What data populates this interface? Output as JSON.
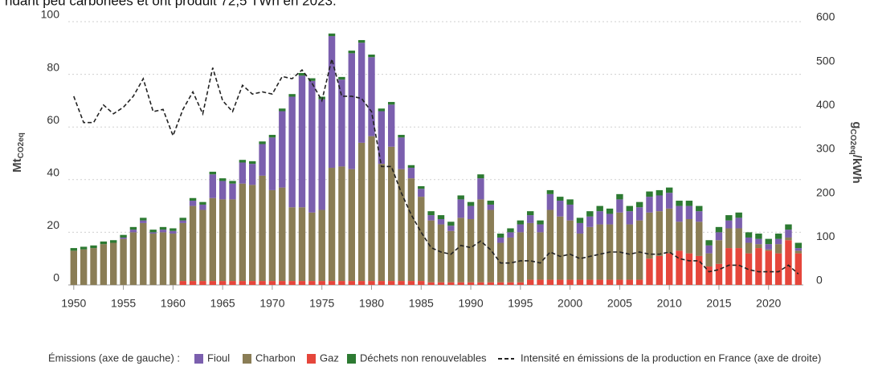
{
  "chart_data": {
    "type": "bar",
    "caption_fragment": "ndant peu carbonées et ont produit 72,5 TWh en 2023.",
    "y_label": "Mt",
    "y_label_sub": "CO2eq",
    "y2_label": "g",
    "y2_label_sub": "CO2eq",
    "y2_label_unit": "/kWh",
    "legend_title": "Émissions (axe de gauche) :",
    "x": [
      1950,
      1951,
      1952,
      1953,
      1954,
      1955,
      1956,
      1957,
      1958,
      1959,
      1960,
      1961,
      1962,
      1963,
      1964,
      1965,
      1966,
      1967,
      1968,
      1969,
      1970,
      1971,
      1972,
      1973,
      1974,
      1975,
      1976,
      1977,
      1978,
      1979,
      1980,
      1981,
      1982,
      1983,
      1984,
      1985,
      1986,
      1987,
      1988,
      1989,
      1990,
      1991,
      1992,
      1993,
      1994,
      1995,
      1996,
      1997,
      1998,
      1999,
      2000,
      2001,
      2002,
      2003,
      2004,
      2005,
      2006,
      2007,
      2008,
      2009,
      2010,
      2011,
      2012,
      2013,
      2014,
      2015,
      2016,
      2017,
      2018,
      2019,
      2020,
      2021,
      2022,
      2023
    ],
    "xlim": [
      1949.45,
      2023.5
    ],
    "xticks": [
      1950,
      1955,
      1960,
      1965,
      1970,
      1975,
      1980,
      1985,
      1990,
      1995,
      2000,
      2005,
      2010,
      2015,
      2020
    ],
    "ylim": [
      0,
      100
    ],
    "yticks": [
      0,
      20,
      40,
      60,
      80,
      100
    ],
    "y2lim": [
      0,
      600
    ],
    "y2ticks": [
      0,
      100,
      200,
      300,
      400,
      500,
      600
    ],
    "grid": true,
    "series": [
      {
        "name": "Fioul",
        "color": "#7b5fae",
        "values": [
          0,
          0,
          0,
          0,
          0,
          0.5,
          1,
          1,
          0.5,
          1,
          1,
          1,
          2,
          2,
          9,
          7,
          6,
          8,
          8,
          12,
          20,
          29,
          42,
          50,
          50,
          42,
          50,
          33,
          44,
          38,
          30,
          20,
          16,
          12,
          4,
          3,
          2,
          2,
          2,
          7,
          5,
          8,
          2,
          2,
          2,
          3,
          3,
          3,
          6,
          6,
          6,
          4,
          4,
          5,
          4,
          5,
          5,
          5,
          6,
          6,
          6,
          6,
          5,
          4,
          3,
          3,
          3,
          4,
          2,
          2,
          2,
          2,
          3,
          1
        ]
      },
      {
        "name": "Charbon",
        "color": "#8a7d55",
        "values": [
          13,
          13.5,
          14,
          15.5,
          16,
          17.5,
          20,
          23.5,
          19.5,
          20,
          19.5,
          22,
          28.5,
          27,
          31.5,
          31,
          31,
          37,
          36.5,
          40,
          34.5,
          35.5,
          28,
          28,
          26,
          27,
          43,
          43.5,
          42.5,
          52.5,
          55,
          44.5,
          51,
          42.5,
          39,
          32,
          23.5,
          22,
          19.5,
          24.5,
          24,
          31.5,
          27.5,
          15,
          17,
          19,
          21.5,
          18,
          26.5,
          24,
          22.5,
          17.5,
          20,
          21,
          21,
          25.5,
          21,
          22.5,
          17.5,
          17,
          17,
          11,
          13,
          13,
          5,
          9,
          7.5,
          7.5,
          4,
          1.5,
          0.5,
          3.5,
          1,
          1
        ]
      },
      {
        "name": "Gaz",
        "color": "#e5463b",
        "values": [
          0,
          0,
          0,
          0,
          0,
          0,
          0,
          0,
          0,
          0,
          0,
          1.5,
          1.5,
          1.5,
          1.5,
          1.5,
          1.5,
          1.5,
          1.5,
          1.5,
          1.5,
          1.5,
          1.5,
          1.5,
          1.5,
          1.5,
          1.5,
          1.5,
          1.5,
          1.5,
          1.5,
          1.5,
          1.5,
          1.5,
          1.5,
          1.5,
          1,
          1,
          1,
          1,
          1,
          1,
          1,
          1,
          1,
          1,
          2,
          2,
          2,
          2,
          2,
          2,
          2,
          2,
          2,
          2,
          2,
          2,
          10,
          11,
          12,
          13,
          12,
          11,
          7,
          8,
          14,
          14,
          12,
          14,
          13,
          12,
          17,
          12
        ]
      },
      {
        "name": "Déchets non renouvelables",
        "color": "#2d7a32",
        "values": [
          1,
          1,
          1,
          1,
          1,
          1,
          1,
          1,
          1,
          1,
          1,
          1,
          1,
          1,
          1,
          1,
          1,
          1,
          1,
          1,
          1,
          1,
          1,
          1,
          1,
          1,
          1,
          1,
          1,
          1,
          1,
          1,
          1,
          1,
          1,
          1,
          1.5,
          1.5,
          1.5,
          1.5,
          1.5,
          1.5,
          1.5,
          1.5,
          1.5,
          1.5,
          1.5,
          1.5,
          1.5,
          1.5,
          2,
          2,
          2,
          2,
          2,
          2,
          2,
          2,
          2,
          2,
          2,
          2,
          2,
          2,
          2,
          2,
          2,
          2,
          2,
          2,
          2,
          2,
          2,
          2
        ]
      },
      {
        "name": "Intensité en émissions de la production en France (axe de droite)",
        "color": "#222222",
        "type": "line",
        "dashed": true,
        "axis": "y2",
        "values": [
          430,
          370,
          370,
          410,
          390,
          405,
          430,
          470,
          395,
          400,
          340,
          400,
          440,
          390,
          495,
          420,
          395,
          455,
          435,
          440,
          435,
          475,
          470,
          490,
          460,
          420,
          515,
          430,
          430,
          425,
          395,
          270,
          270,
          210,
          160,
          120,
          85,
          75,
          70,
          90,
          85,
          100,
          80,
          50,
          50,
          55,
          55,
          50,
          75,
          65,
          70,
          60,
          65,
          70,
          75,
          75,
          70,
          75,
          70,
          70,
          75,
          60,
          55,
          55,
          30,
          35,
          45,
          45,
          35,
          30,
          30,
          30,
          45,
          25
        ]
      }
    ]
  }
}
